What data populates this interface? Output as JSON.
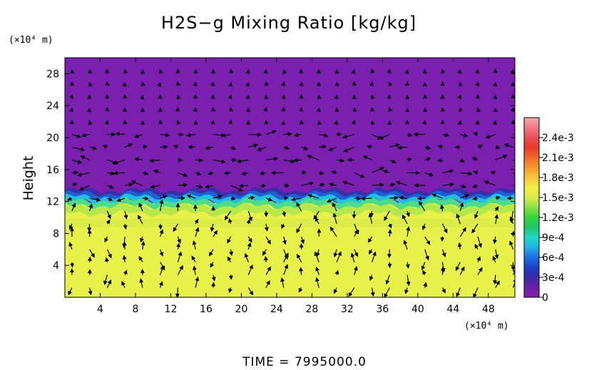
{
  "chart_data": {
    "type": "heatmap",
    "title": "H2S−g Mixing Ratio [kg/kg]",
    "ylabel": "Height",
    "y_unit": "(×10⁴ m)",
    "x_unit": "(×10⁴ m)",
    "x_ticks": [
      "4",
      "8",
      "12",
      "16",
      "20",
      "24",
      "28",
      "32",
      "36",
      "40",
      "44",
      "48"
    ],
    "y_ticks": [
      "4",
      "8",
      "12",
      "16",
      "20",
      "24",
      "28"
    ],
    "xlim": [
      0,
      51
    ],
    "ylim": [
      0,
      30
    ],
    "colorbar": {
      "labels": [
        "2.4e-3",
        "2.1e-3",
        "1.8e-3",
        "1.5e-3",
        "1.2e-3",
        "9e-4",
        "6e-4",
        "3e-4",
        "0"
      ],
      "range": [
        0,
        0.0027
      ],
      "colors": [
        "#8a1fa8",
        "#6a1fa6",
        "#3d2aa8",
        "#1b3fc4",
        "#1e6fe0",
        "#21b0e8",
        "#22d6c8",
        "#1fc76a",
        "#35d43a",
        "#8ee04a",
        "#d8ec4a",
        "#f2ee48",
        "#f7c83a",
        "#f59a2c",
        "#f06a2a",
        "#ea3a2a",
        "#e8505a",
        "#f07a86",
        "#f7a8b0"
      ]
    },
    "field_description": {
      "upper_value": 0,
      "lower_value": 0.00165,
      "interface_height": 12,
      "grid": "off"
    },
    "time_label": "TIME  =  7995000.0"
  }
}
